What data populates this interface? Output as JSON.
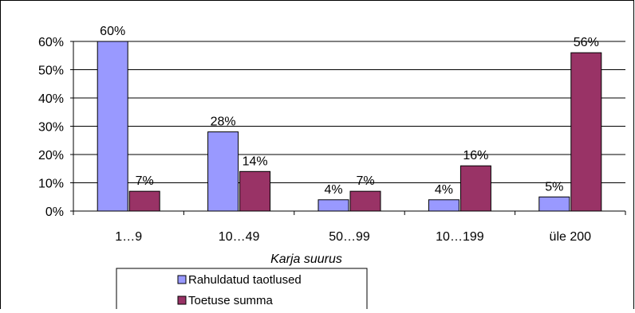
{
  "chart_data": {
    "type": "bar",
    "categories": [
      "1…9",
      "10…49",
      "50…99",
      "10…199",
      "üle 200"
    ],
    "series": [
      {
        "name": "Rahuldatud taotlused",
        "values": [
          60,
          28,
          4,
          4,
          5
        ],
        "labels": [
          "60%",
          "28%",
          "4%",
          "4%",
          "5%"
        ],
        "color": "#9999ff"
      },
      {
        "name": "Toetuse summa",
        "values": [
          7,
          14,
          7,
          16,
          56
        ],
        "labels": [
          "7%",
          "14%",
          "7%",
          "16%",
          "56%"
        ],
        "color": "#993366"
      }
    ],
    "xlabel": "Karja suurus",
    "ylabel": "",
    "ylim": [
      0,
      60
    ],
    "yticks": [
      0,
      10,
      20,
      30,
      40,
      50,
      60
    ],
    "ytick_labels": [
      "0%",
      "10%",
      "20%",
      "30%",
      "40%",
      "50%",
      "60%"
    ],
    "grid": true,
    "legend_position": "bottom"
  }
}
